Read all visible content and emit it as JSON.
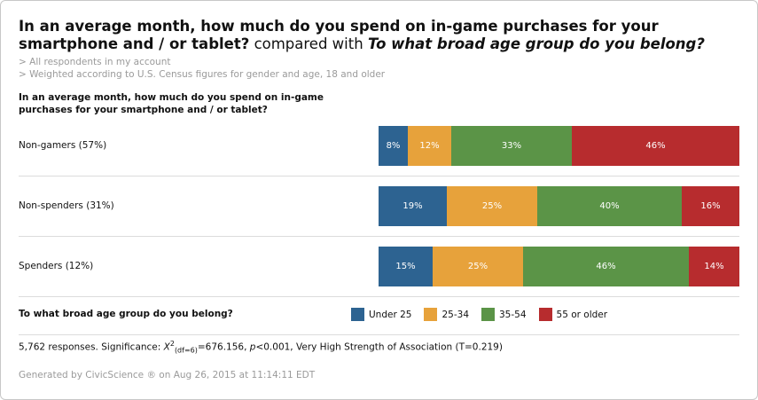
{
  "title": {
    "question1": "In an average month, how much do you spend on in-game purchases for your smartphone and / or tablet?",
    "connector": "compared with",
    "question2": "To what broad age group do you belong?"
  },
  "subtitles": [
    "> All respondents in my account",
    "> Weighted according to U.S. Census figures for gender and age, 18 and older"
  ],
  "chart_data": {
    "type": "bar",
    "orientation": "horizontal",
    "stacked": true,
    "normalized_percent": true,
    "row_header": "In an average month, how much do you spend on in-game purchases for your smartphone and / or tablet?",
    "categories": [
      "Non-gamers (57%)",
      "Non-spenders (31%)",
      "Spenders (12%)"
    ],
    "series": [
      {
        "name": "Under 25",
        "color": "#2d6391",
        "values": [
          8,
          19,
          15
        ],
        "labels": [
          "8%",
          "19%",
          "15%"
        ]
      },
      {
        "name": "25-34",
        "color": "#e7a23b",
        "values": [
          12,
          25,
          25
        ],
        "labels": [
          "12%",
          "25%",
          "25%"
        ]
      },
      {
        "name": "35-54",
        "color": "#5b9447",
        "values": [
          33,
          40,
          46
        ],
        "labels": [
          "33%",
          "40%",
          "46%"
        ]
      },
      {
        "name": "55 or older",
        "color": "#b72c2e",
        "values": [
          46,
          16,
          14
        ],
        "labels": [
          "46%",
          "16%",
          "14%"
        ]
      }
    ],
    "legend_title": "To what broad age group do you belong?",
    "legend_position": "bottom"
  },
  "stats": {
    "prefix": "5,762 responses. Significance: ",
    "chi_symbol": "X",
    "chi_exp": "2",
    "chi_sub": "(df=6)",
    "chi_value": "=676.156, ",
    "p_symbol": "p",
    "p_value": "<0.001, Very High Strength of Association (T=0.219)"
  },
  "footer": "Generated by CivicScience ® on Aug 26, 2015 at 11:14:11 EDT"
}
